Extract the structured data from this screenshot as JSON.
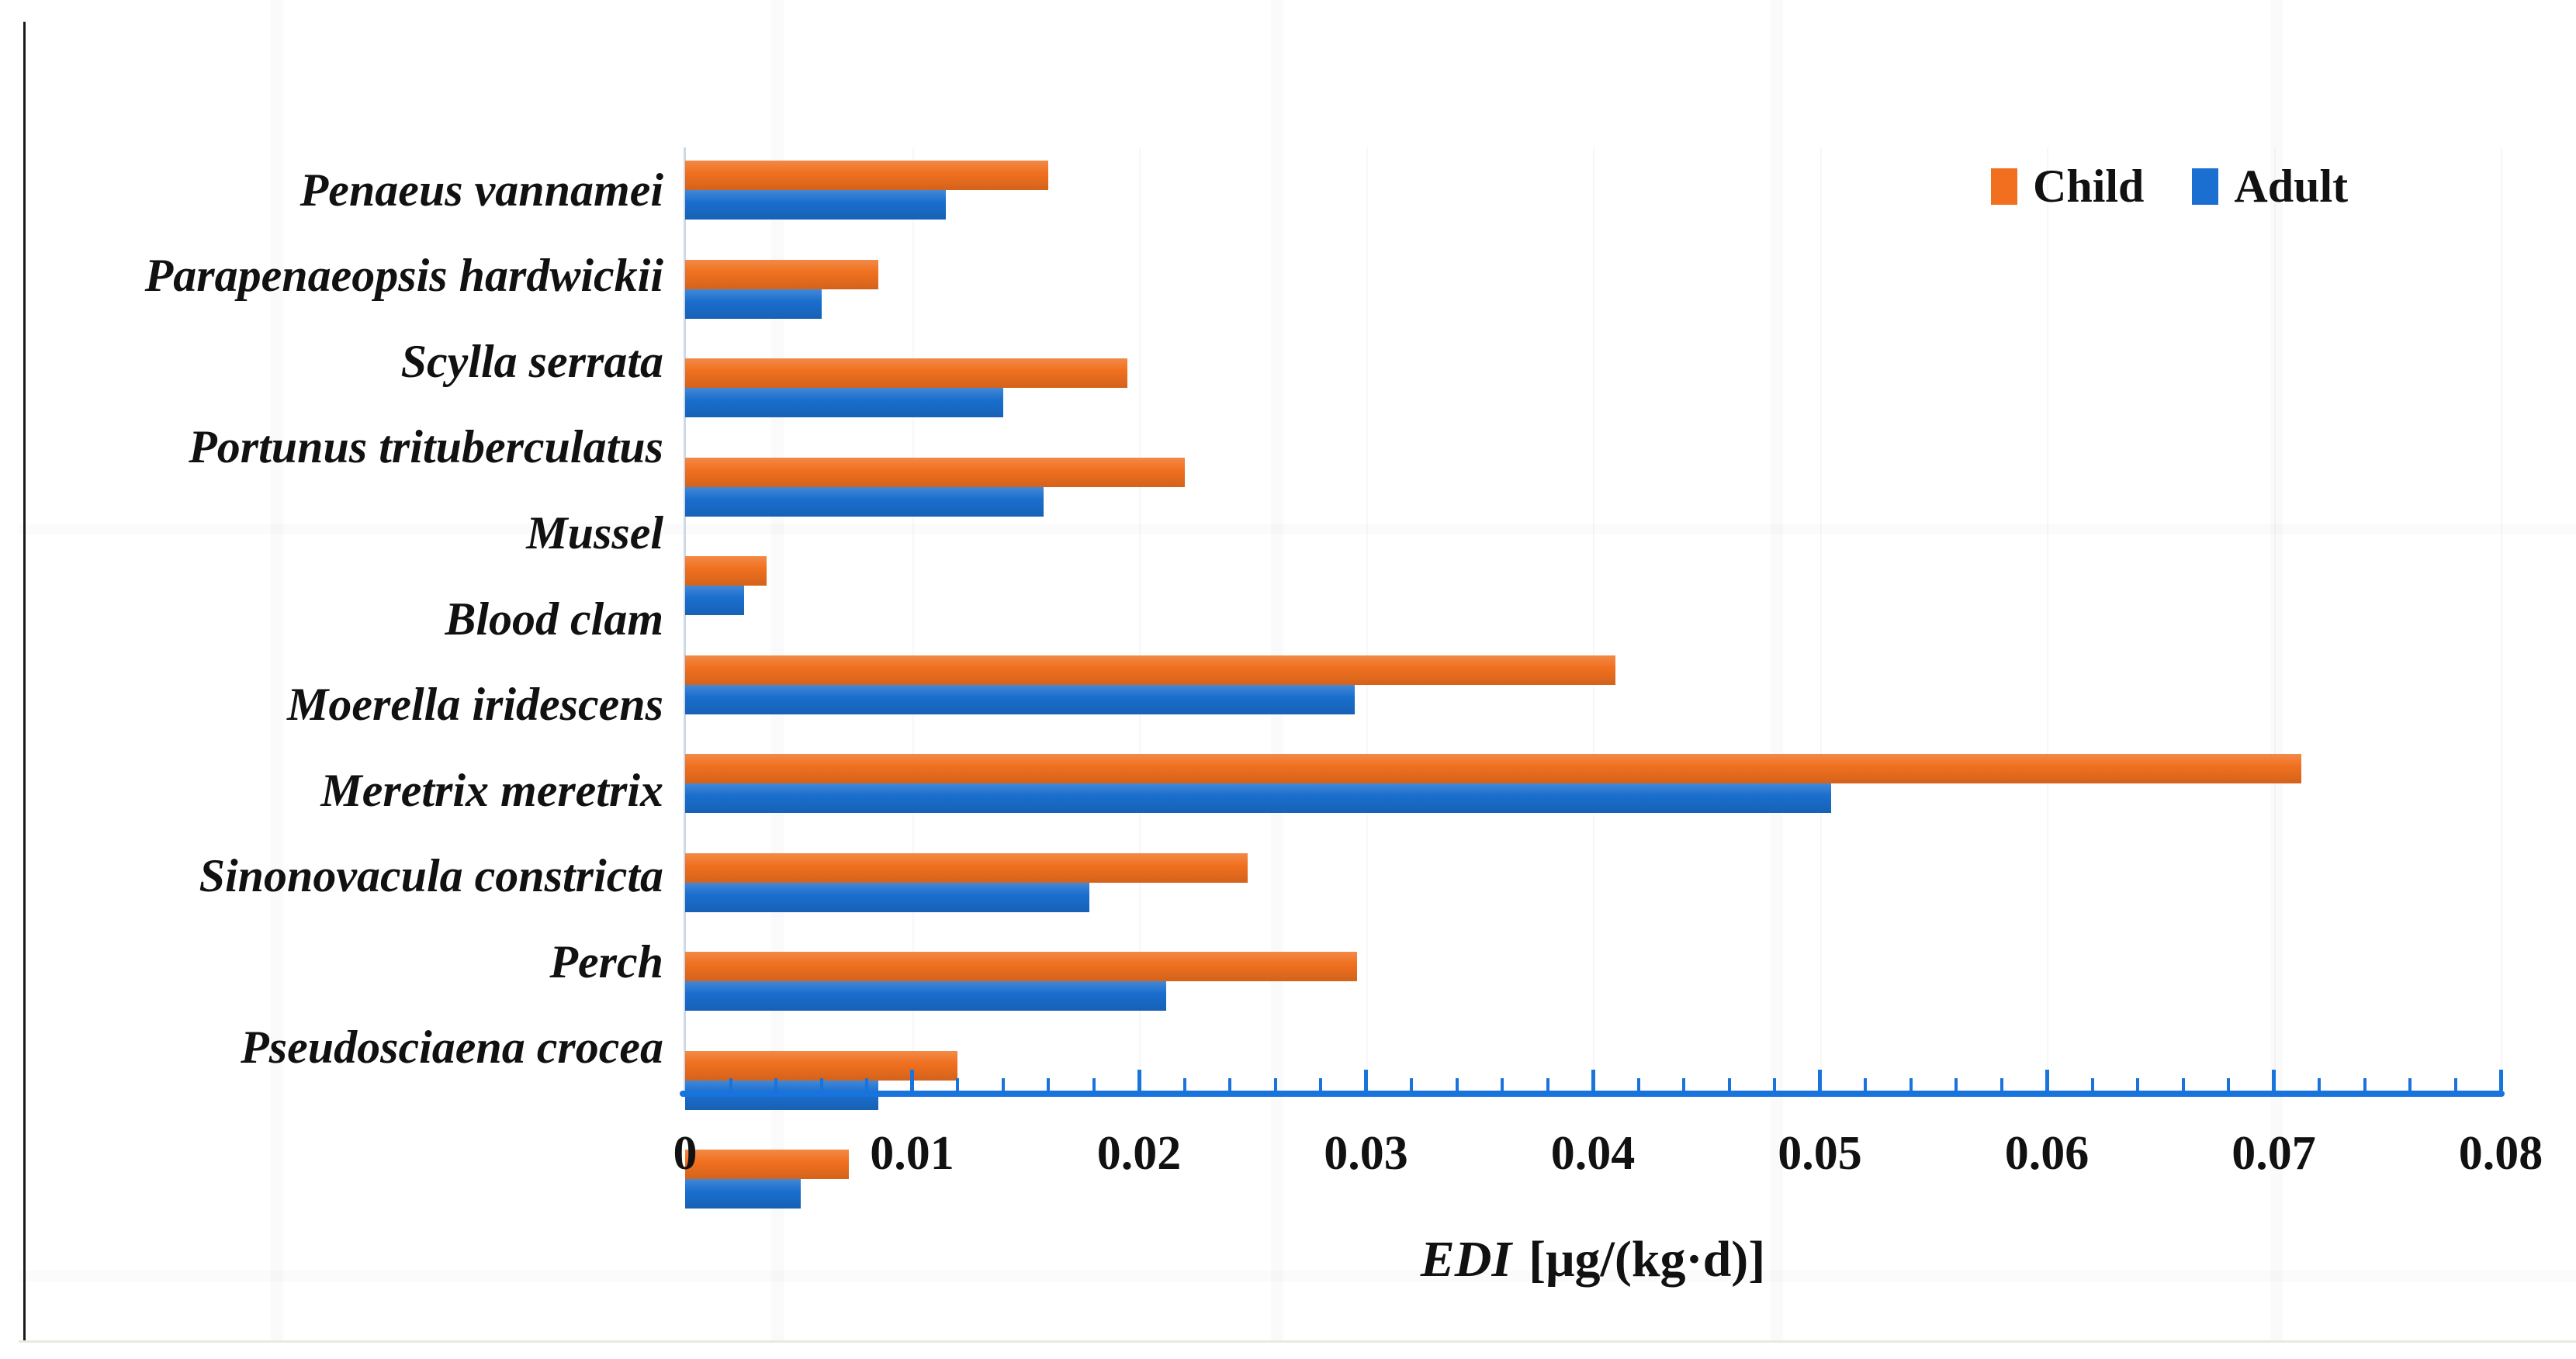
{
  "figure": {
    "axis_title_main": "EDI",
    "axis_title_unit": "[μg/(kg·d)]",
    "legend": [
      {
        "label": "Child",
        "color": "#F26F20"
      },
      {
        "label": "Adult",
        "color": "#1B6FD0"
      }
    ],
    "colors": {
      "child_bar": "#F0701F",
      "adult_bar": "#1A6ECE",
      "axis_blue": "#1873DD",
      "plot_edge": "#CDD9E8"
    }
  },
  "chart_data": {
    "type": "bar",
    "orientation": "horizontal",
    "title": "",
    "xlabel": "EDI [μg/(kg·d)]",
    "ylabel": "",
    "xlim": [
      0,
      0.08
    ],
    "x_minor_step": 0.002,
    "x_major_ticks": [
      0,
      0.01,
      0.02,
      0.03,
      0.04,
      0.05,
      0.06,
      0.07,
      0.08
    ],
    "x_tick_labels": [
      "0",
      "0.01",
      "0.02",
      "0.03",
      "0.04",
      "0.05",
      "0.06",
      "0.07",
      "0.08"
    ],
    "legend_position": "top-right",
    "grid": "faint-vertical-major",
    "categories": [
      "Penaeus vannamei",
      "Parapenaeopsis hardwickii",
      "Scylla serrata",
      "Portunus trituberculatus",
      "Mussel",
      "Blood clam",
      "Moerella iridescens",
      "Meretrix meretrix",
      "Sinonovacula constricta",
      "Perch",
      "Pseudosciaena crocea"
    ],
    "series": [
      {
        "name": "Child",
        "color": "#F0701F",
        "values": [
          0.016,
          0.0085,
          0.0195,
          0.022,
          0.0036,
          0.041,
          0.0712,
          0.0248,
          0.0296,
          0.012,
          0.0072
        ]
      },
      {
        "name": "Adult",
        "color": "#1A6ECE",
        "values": [
          0.0115,
          0.006,
          0.014,
          0.0158,
          0.0026,
          0.0295,
          0.0505,
          0.0178,
          0.0212,
          0.0085,
          0.0051
        ]
      }
    ]
  }
}
